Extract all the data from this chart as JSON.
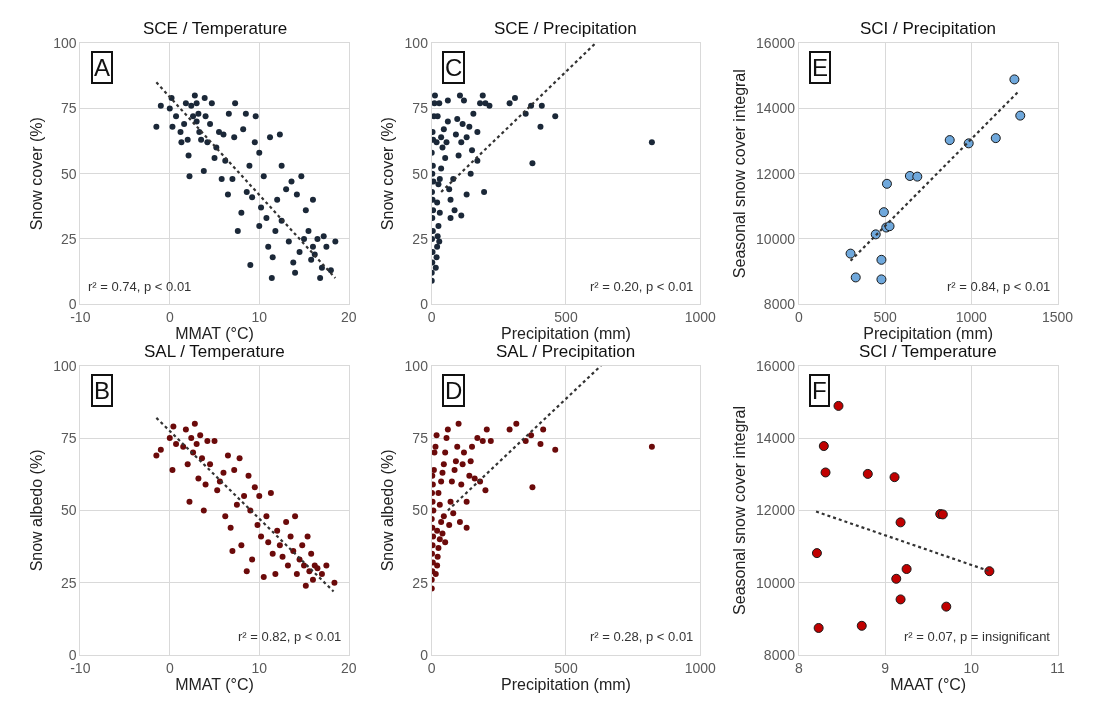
{
  "chart_data": [
    {
      "type": "scatter",
      "title": "SCE / Temperature",
      "xlabel": "MMAT (°C)",
      "ylabel": "Snow cover (%)",
      "xlim": [
        -10,
        20
      ],
      "xticks": [
        -10,
        0,
        10,
        20
      ],
      "ylim": [
        0,
        100
      ],
      "yticks": [
        0,
        25,
        50,
        75,
        100
      ],
      "grid": true,
      "marker": "circle",
      "annotations": [
        "A",
        "r² = 0.74, p < 0.01"
      ],
      "series": [
        {
          "color": "#1b2838",
          "x": [
            -1.5,
            -1,
            0,
            0.2,
            0.3,
            0.7,
            1.2,
            1.3,
            1.6,
            1.8,
            2,
            2.1,
            2.2,
            2.4,
            2.6,
            2.8,
            3,
            3,
            3.2,
            3.3,
            3.5,
            3.8,
            3.9,
            4,
            4.2,
            4.5,
            4.7,
            5,
            5.2,
            5.5,
            5.8,
            6,
            6.2,
            6.5,
            6.6,
            7,
            7.2,
            7.3,
            7.6,
            8,
            8.2,
            8.5,
            8.6,
            8.9,
            9,
            9.2,
            9.5,
            9.6,
            10,
            10,
            10.2,
            10.5,
            10.8,
            11,
            11.2,
            11.4,
            11.5,
            11.8,
            12,
            12.3,
            12.5,
            12.5,
            13,
            13.3,
            13.6,
            13.8,
            14,
            14.2,
            14.5,
            14.7,
            15,
            15.2,
            15.5,
            15.8,
            16,
            16,
            16.2,
            16.5,
            16.8,
            17,
            17.2,
            17.5,
            18,
            18.5
          ],
          "values": [
            68,
            76,
            75,
            79,
            68,
            72,
            66,
            62,
            69,
            77,
            63,
            57,
            49,
            76,
            72,
            80,
            77,
            70,
            73,
            66,
            63,
            51,
            79,
            72,
            62,
            69,
            77,
            56,
            60,
            66,
            48,
            65,
            55,
            42,
            73,
            48,
            64,
            77,
            28,
            35,
            67,
            73,
            43,
            53,
            15,
            41,
            62,
            72,
            30,
            58,
            37,
            49,
            33,
            22,
            64,
            10,
            18,
            28,
            40,
            65,
            53,
            32,
            44,
            24,
            47,
            16,
            12,
            42,
            20,
            49,
            25,
            36,
            28,
            17,
            22,
            40,
            19,
            25,
            10,
            14,
            26,
            22,
            13,
            24
          ]
        },
        {
          "type": "line",
          "color": "#333333",
          "marker": "none",
          "line_style": "dotted",
          "x": [
            -1.5,
            18.5
          ],
          "values": [
            85,
            10
          ]
        }
      ]
    },
    {
      "type": "scatter",
      "title": "SCE / Precipitation",
      "xlabel": "Precipitation (mm)",
      "ylabel": "Snow cover (%)",
      "xlim": [
        0,
        1000
      ],
      "xticks": [
        0,
        500,
        1000
      ],
      "ylim": [
        0,
        100
      ],
      "yticks": [
        0,
        25,
        50,
        75,
        100
      ],
      "grid": true,
      "marker": "circle",
      "annotations": [
        "C",
        "r² = 0.20, p < 0.01"
      ],
      "series": [
        {
          "color": "#1b2838",
          "x": [
            0,
            0,
            2,
            3,
            1,
            4,
            2,
            5,
            3,
            1,
            6,
            2,
            4,
            0,
            5,
            3,
            8,
            10,
            12,
            15,
            18,
            20,
            22,
            25,
            28,
            30,
            20,
            25,
            30,
            35,
            18,
            22,
            28,
            35,
            40,
            45,
            50,
            55,
            60,
            60,
            65,
            70,
            70,
            80,
            85,
            90,
            95,
            100,
            105,
            110,
            110,
            115,
            120,
            130,
            130,
            140,
            145,
            150,
            155,
            170,
            170,
            180,
            190,
            195,
            200,
            215,
            290,
            310,
            350,
            370,
            375,
            405,
            410,
            460,
            820
          ],
          "values": [
            9,
            12,
            16,
            20,
            25,
            28,
            33,
            36,
            40,
            43,
            47,
            50,
            53,
            58,
            63,
            66,
            72,
            77,
            80,
            14,
            18,
            22,
            26,
            30,
            24,
            35,
            39,
            46,
            48,
            52,
            62,
            72,
            77,
            64,
            60,
            67,
            56,
            62,
            70,
            78,
            44,
            40,
            33,
            48,
            36,
            65,
            71,
            57,
            80,
            62,
            34,
            69,
            78,
            64,
            42,
            68,
            50,
            59,
            73,
            55,
            66,
            77,
            80,
            43,
            77,
            76,
            77,
            79,
            73,
            76,
            54,
            68,
            76,
            72,
            62
          ]
        },
        {
          "type": "line",
          "color": "#333333",
          "marker": "none",
          "line_style": "dotted",
          "x": [
            35,
            610
          ],
          "values": [
            43,
            100
          ]
        }
      ]
    },
    {
      "type": "scatter",
      "title": "SCI / Precipitation",
      "xlabel": "Precipitation (mm)",
      "ylabel": "Seasonal snow cover integral",
      "xlim": [
        0,
        1500
      ],
      "xticks": [
        0,
        500,
        1000,
        1500
      ],
      "ylim": [
        8000,
        16000
      ],
      "yticks": [
        8000,
        10000,
        12000,
        14000,
        16000
      ],
      "grid": true,
      "marker": "circle",
      "annotations": [
        "E",
        "r² = 0.84, p < 0.01"
      ],
      "series": [
        {
          "color": "#6fa8dc",
          "x": [
            300,
            330,
            446,
            479,
            479,
            493,
            507,
            526,
            511,
            644,
            687,
            875,
            985,
            1142,
            1250,
            1284
          ],
          "values": [
            9550,
            8820,
            10140,
            9360,
            8760,
            10820,
            10350,
            10390,
            11690,
            11930,
            11910,
            13030,
            12930,
            13090,
            14890,
            13780
          ]
        },
        {
          "type": "line",
          "color": "#333333",
          "marker": "none",
          "line_style": "dotted",
          "x": [
            300,
            1270
          ],
          "values": [
            9330,
            14500
          ]
        }
      ]
    },
    {
      "type": "scatter",
      "title": "SAL / Temperature",
      "xlabel": "MMAT (°C)",
      "ylabel": "Snow albedo (%)",
      "xlim": [
        -10,
        20
      ],
      "xticks": [
        -10,
        0,
        10,
        20
      ],
      "ylim": [
        0,
        100
      ],
      "yticks": [
        0,
        25,
        50,
        75,
        100
      ],
      "grid": true,
      "marker": "circle",
      "annotations": [
        "B",
        "r² = 0.82, p < 0.01"
      ],
      "series": [
        {
          "color": "#6b0a0a",
          "x": [
            -1.5,
            -1,
            0,
            0.3,
            0.4,
            0.7,
            1.5,
            1.8,
            2,
            2.2,
            2.4,
            2.6,
            2.8,
            3,
            3.2,
            3.4,
            3.6,
            3.8,
            4,
            4.2,
            4.5,
            5,
            5.3,
            5.6,
            6,
            6.2,
            6.5,
            6.8,
            7,
            7.2,
            7.5,
            7.8,
            8,
            8.3,
            8.6,
            8.8,
            9,
            9.2,
            9.5,
            9.8,
            10,
            10.2,
            10.5,
            10.8,
            11,
            11.3,
            11.5,
            11.8,
            12,
            12.3,
            12.6,
            13,
            13.2,
            13.5,
            13.8,
            14,
            14.2,
            14.5,
            14.8,
            15,
            15.2,
            15.4,
            15.6,
            15.8,
            16,
            16.2,
            16.5,
            17,
            17.5,
            18.4
          ],
          "values": [
            69,
            71,
            75,
            64,
            79,
            73,
            72,
            78,
            66,
            53,
            75,
            70,
            80,
            73,
            61,
            76,
            68,
            50,
            59,
            74,
            66,
            74,
            57,
            60,
            63,
            48,
            69,
            44,
            36,
            64,
            52,
            68,
            38,
            55,
            29,
            62,
            50,
            33,
            58,
            45,
            55,
            41,
            27,
            48,
            39,
            56,
            35,
            28,
            43,
            38,
            34,
            46,
            31,
            41,
            36,
            48,
            28,
            33,
            38,
            31,
            24,
            41,
            29,
            35,
            26,
            31,
            30,
            28,
            31,
            25
          ]
        },
        {
          "type": "line",
          "color": "#333333",
          "marker": "none",
          "line_style": "dotted",
          "x": [
            -1.5,
            18.3
          ],
          "values": [
            82,
            22
          ]
        }
      ]
    },
    {
      "type": "scatter",
      "title": "SAL / Precipitation",
      "xlabel": "Precipitation (mm)",
      "ylabel": "Snow albedo (%)",
      "xlim": [
        0,
        1000
      ],
      "xticks": [
        0,
        500,
        1000
      ],
      "ylim": [
        0,
        100
      ],
      "yticks": [
        0,
        25,
        50,
        75,
        100
      ],
      "grid": true,
      "marker": "circle",
      "annotations": [
        "D",
        "r² = 0.28, p < 0.01"
      ],
      "series": [
        {
          "color": "#6b0a0a",
          "x": [
            0,
            0,
            2,
            4,
            1,
            3,
            5,
            2,
            0,
            6,
            3,
            1,
            4,
            2,
            8,
            10,
            14,
            18,
            15,
            20,
            22,
            25,
            30,
            20,
            35,
            40,
            45,
            50,
            30,
            25,
            35,
            40,
            45,
            50,
            55,
            60,
            65,
            70,
            75,
            80,
            85,
            90,
            95,
            100,
            105,
            110,
            115,
            120,
            130,
            130,
            140,
            145,
            150,
            160,
            170,
            180,
            190,
            200,
            205,
            220,
            290,
            315,
            350,
            370,
            375,
            405,
            415,
            460,
            820
          ],
          "values": [
            23,
            26,
            29,
            32,
            35,
            38,
            41,
            44,
            47,
            50,
            53,
            56,
            59,
            62,
            64,
            70,
            72,
            76,
            28,
            31,
            34,
            37,
            40,
            43,
            46,
            42,
            48,
            39,
            52,
            56,
            60,
            63,
            66,
            70,
            75,
            78,
            45,
            53,
            60,
            49,
            64,
            67,
            72,
            80,
            46,
            59,
            66,
            70,
            53,
            44,
            62,
            67,
            72,
            61,
            75,
            60,
            74,
            57,
            78,
            74,
            78,
            80,
            74,
            76,
            58,
            73,
            78,
            71,
            72
          ]
        },
        {
          "type": "line",
          "color": "#333333",
          "marker": "none",
          "line_style": "dotted",
          "x": [
            60,
            630
          ],
          "values": [
            50,
            100
          ]
        }
      ]
    },
    {
      "type": "scatter",
      "title": "SCI / Temperature",
      "xlabel": "MAAT (°C)",
      "ylabel": "Seasonal snow cover integral",
      "xlim": [
        8,
        11
      ],
      "xticks": [
        8,
        9,
        10,
        11
      ],
      "ylim": [
        8000,
        16000
      ],
      "yticks": [
        8000,
        10000,
        12000,
        14000,
        16000
      ],
      "grid": true,
      "marker": "circle",
      "annotations": [
        "F",
        "r² = 0.07, p = insignificant"
      ],
      "series": [
        {
          "color": "#c00000",
          "x": [
            8.46,
            8.29,
            8.31,
            8.8,
            9.11,
            9.64,
            9.67,
            9.18,
            8.21,
            9.25,
            9.13,
            10.21,
            9.18,
            9.71,
            8.23,
            8.73
          ],
          "values": [
            14890,
            13780,
            13050,
            13010,
            12920,
            11900,
            11890,
            11670,
            10820,
            10380,
            10110,
            10320,
            9540,
            9340,
            8750,
            8810
          ]
        },
        {
          "type": "line",
          "color": "#333333",
          "marker": "none",
          "line_style": "dotted",
          "x": [
            8.2,
            10.2
          ],
          "values": [
            11970,
            10330
          ]
        }
      ]
    }
  ]
}
